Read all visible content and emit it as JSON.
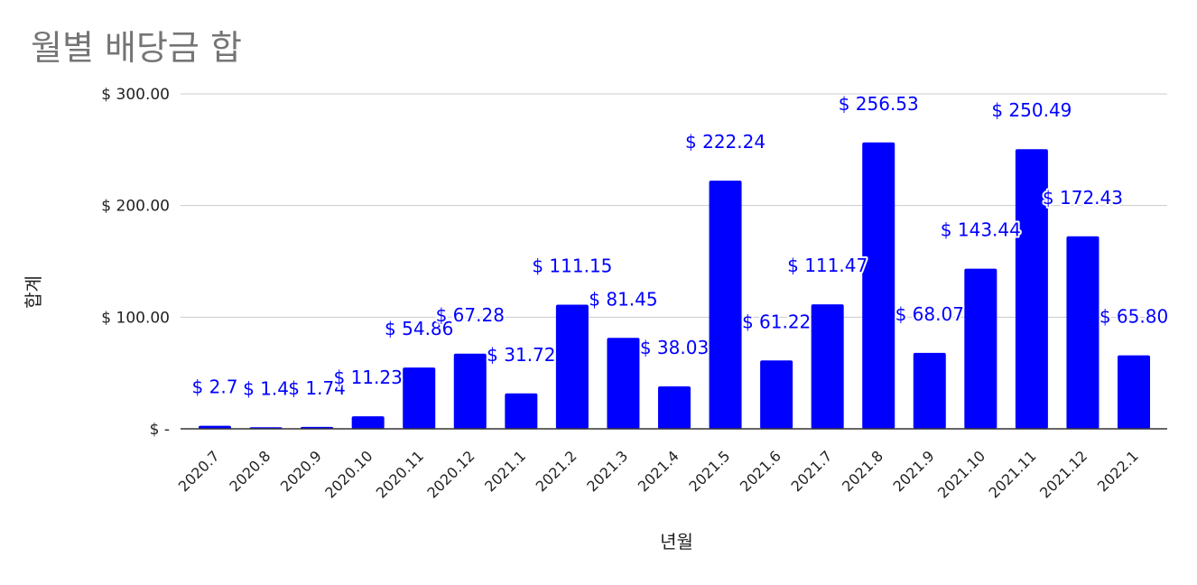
{
  "chart_data": {
    "type": "bar",
    "title": "월별 배당금 합",
    "xlabel": "년월",
    "ylabel": "합계",
    "ylim": [
      0,
      300
    ],
    "y_ticks": [
      {
        "value": 0,
        "label": "$ -"
      },
      {
        "value": 100,
        "label": "$ 100.00"
      },
      {
        "value": 200,
        "label": "$ 200.00"
      },
      {
        "value": 300,
        "label": "$ 300.00"
      }
    ],
    "grid": true,
    "bar_color": "#0000ff",
    "label_color": "#0000ff",
    "categories": [
      "2020.7",
      "2020.8",
      "2020.9",
      "2020.10",
      "2020.11",
      "2020.12",
      "2021.1",
      "2021.2",
      "2021.3",
      "2021.4",
      "2021.5",
      "2021.6",
      "2021.7",
      "2021.8",
      "2021.9",
      "2021.10",
      "2021.11",
      "2021.12",
      "2022.1"
    ],
    "values": [
      2.7,
      1.4,
      1.74,
      11.23,
      54.86,
      67.28,
      31.72,
      111.15,
      81.45,
      38.03,
      222.24,
      61.22,
      111.47,
      256.53,
      68.07,
      143.44,
      250.49,
      172.43,
      65.8
    ],
    "data_labels": [
      "$ 2.7",
      "$ 1.4",
      "$ 1.74",
      "$ 11.23",
      "$ 54.86",
      "$ 67.28",
      "$ 31.72",
      "$ 111.15",
      "$ 81.45",
      "$ 38.03",
      "$ 222.24",
      "$ 61.22",
      "$ 111.47",
      "$ 256.53",
      "$ 68.07",
      "$ 143.44",
      "$ 250.49",
      "$ 172.43",
      "$ 65.80"
    ]
  }
}
